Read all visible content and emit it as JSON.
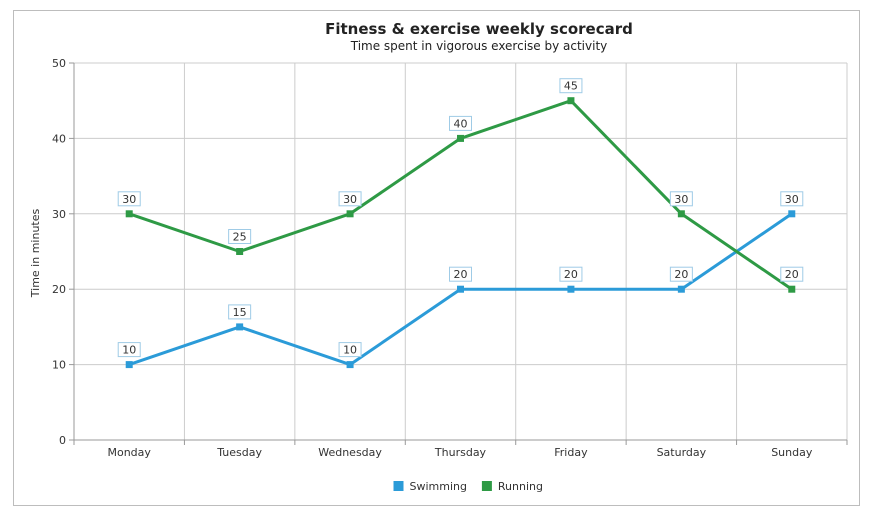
{
  "chart_data": {
    "type": "line",
    "title": "Fitness & exercise weekly scorecard",
    "subtitle": "Time spent in vigorous exercise by activity",
    "xlabel": "",
    "ylabel": "Time in minutes",
    "categories": [
      "Monday",
      "Tuesday",
      "Wednesday",
      "Thursday",
      "Friday",
      "Saturday",
      "Sunday"
    ],
    "ylim": [
      0,
      50
    ],
    "yticks": [
      0,
      10,
      20,
      30,
      40,
      50
    ],
    "grid": true,
    "legend_position": "bottom",
    "series": [
      {
        "name": "Swimming",
        "color": "#2b9bd8",
        "values": [
          10,
          15,
          10,
          20,
          20,
          20,
          30
        ]
      },
      {
        "name": "Running",
        "color": "#2e9a45",
        "values": [
          30,
          25,
          30,
          40,
          45,
          30,
          20
        ]
      }
    ]
  }
}
